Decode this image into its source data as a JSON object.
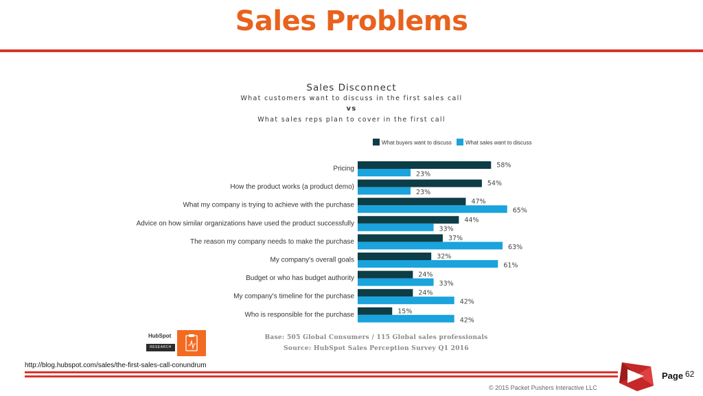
{
  "slide": {
    "title": "Sales Problems",
    "source_url": "http://blog.hubspot.com/sales/the-first-sales-call-conundrum",
    "page_label": "Page",
    "page_number": "62",
    "copyright": "© 2015 Packet Pushers Interactive LLC",
    "hubspot_logo_text": "HubSpot",
    "hubspot_research_label": "RESEARCH"
  },
  "colors": {
    "title_orange": "#e8621d",
    "rule_red": "#d7352b",
    "buyers_dark": "#0d3d47",
    "sales_blue": "#1aa3dc",
    "text": "#333333",
    "logo_red": "#c62828"
  },
  "chart_data": {
    "type": "bar",
    "orientation": "horizontal",
    "title": "Sales Disconnect",
    "subtitle_lines": [
      "What customers want to discuss in the first sales call",
      "vs",
      "What sales reps plan to cover in the first call"
    ],
    "categories": [
      "Pricing",
      "How the product works (a product demo)",
      "What my company is trying to achieve with the purchase",
      "Advice on how similar organizations have used the product successfully",
      "The reason my company needs to make the purchase",
      "My company's overall goals",
      "Budget or who has budget authority",
      "My company's timeline for the purchase",
      "Who is responsible for the purchase"
    ],
    "series": [
      {
        "name": "What buyers want to discuss",
        "values": [
          58,
          54,
          47,
          44,
          37,
          32,
          24,
          24,
          15
        ]
      },
      {
        "name": "What sales want to discuss",
        "values": [
          23,
          23,
          65,
          33,
          63,
          61,
          33,
          42,
          42
        ]
      }
    ],
    "value_suffix": "%",
    "xlim": [
      0,
      100
    ],
    "grid": false,
    "legend_position": "top-right",
    "notes": [
      "Base: 505 Global Consumers / 115 Global sales professionals",
      "Source: HubSpot Sales Perception Survey Q1 2016"
    ]
  }
}
